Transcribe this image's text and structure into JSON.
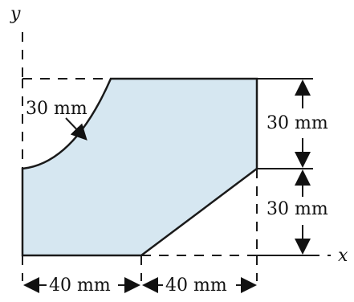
{
  "diagram": {
    "axis_labels": {
      "y": "y",
      "x": "x"
    },
    "dimensions": {
      "radius": "30 mm",
      "right_top": "30 mm",
      "right_bottom": "30 mm",
      "bottom_left": "40 mm",
      "bottom_right": "40 mm"
    },
    "colors": {
      "fill": "#d6e7f1",
      "stroke": "#1a1a1a"
    }
  }
}
